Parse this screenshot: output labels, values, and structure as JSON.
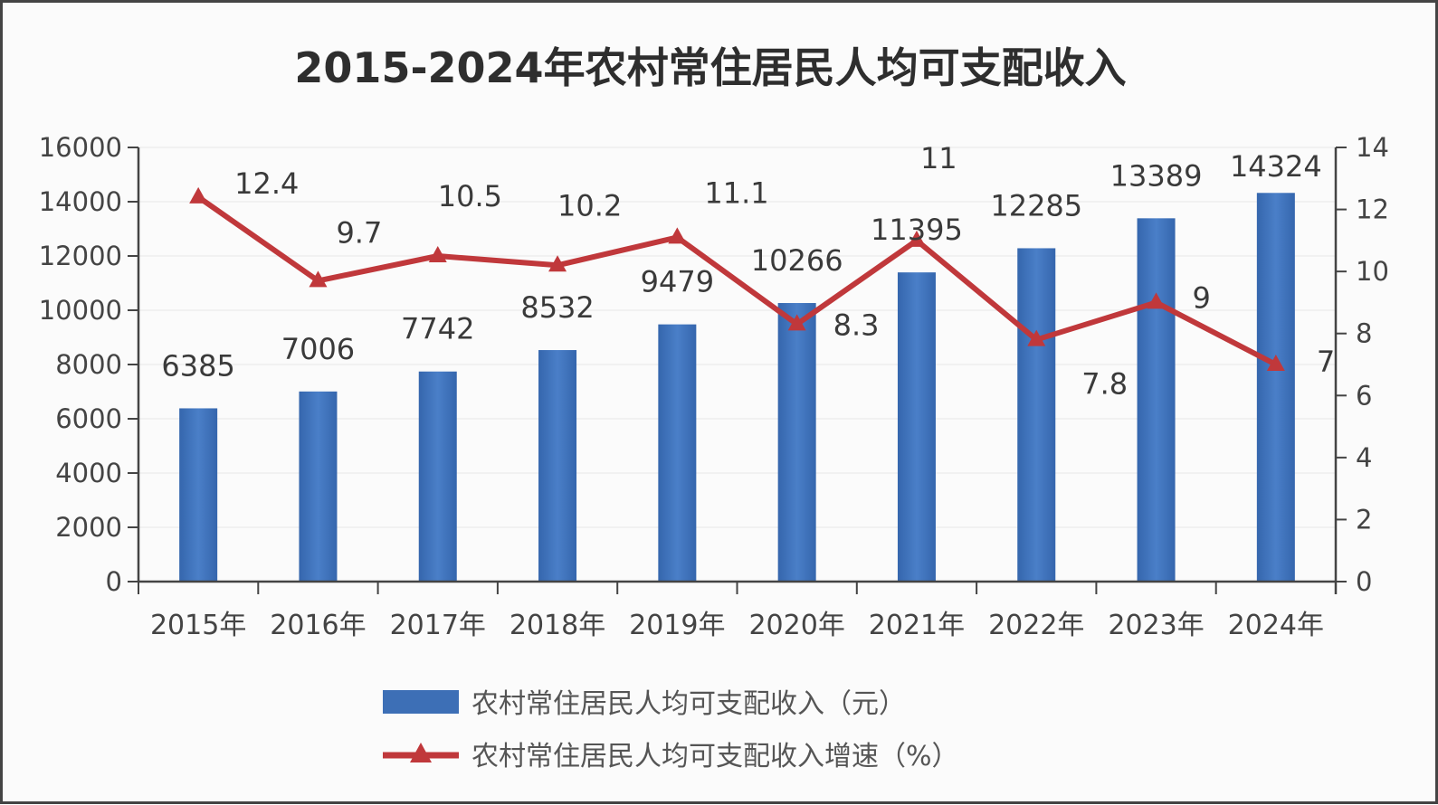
{
  "chart_data": {
    "type": "bar",
    "title": "2015-2024年农村常住居民人均可支配收入",
    "categories": [
      "2015年",
      "2016年",
      "2017年",
      "2018年",
      "2019年",
      "2020年",
      "2021年",
      "2022年",
      "2023年",
      "2024年"
    ],
    "series": [
      {
        "name": "农村常住居民人均可支配收入（元）",
        "type": "bar",
        "axis": "left",
        "color": "#3d6fb6",
        "values": [
          6385,
          7006,
          7742,
          8532,
          9479,
          10266,
          11395,
          12285,
          13389,
          14324
        ],
        "labels": [
          "6385",
          "7006",
          "7742",
          "8532",
          "9479",
          "10266",
          "11395",
          "12285",
          "13389",
          "14324"
        ]
      },
      {
        "name": "农村常住居民人均可支配收入增速（%）",
        "type": "line",
        "axis": "right",
        "color": "#c0383b",
        "marker": "triangle",
        "values": [
          12.4,
          9.7,
          10.5,
          10.2,
          11.1,
          8.3,
          11,
          7.8,
          9,
          7
        ],
        "labels": [
          "12.4",
          "9.7",
          "10.5",
          "10.2",
          "11.1",
          "8.3",
          "11",
          "7.8",
          "9",
          "7"
        ]
      }
    ],
    "y_left": {
      "ylim": [
        0,
        16000
      ],
      "ticks": [
        0,
        2000,
        4000,
        6000,
        8000,
        10000,
        12000,
        14000,
        16000
      ],
      "tick_labels": [
        "0",
        "2000",
        "4000",
        "6000",
        "8000",
        "10000",
        "12000",
        "14000",
        "16000"
      ]
    },
    "y_right": {
      "ylim": [
        0,
        14
      ],
      "ticks": [
        0,
        2,
        4,
        6,
        8,
        10,
        12,
        14
      ],
      "tick_labels": [
        "0",
        "2",
        "4",
        "6",
        "8",
        "10",
        "12",
        "14"
      ]
    },
    "grid": true,
    "legend_position": "bottom"
  }
}
